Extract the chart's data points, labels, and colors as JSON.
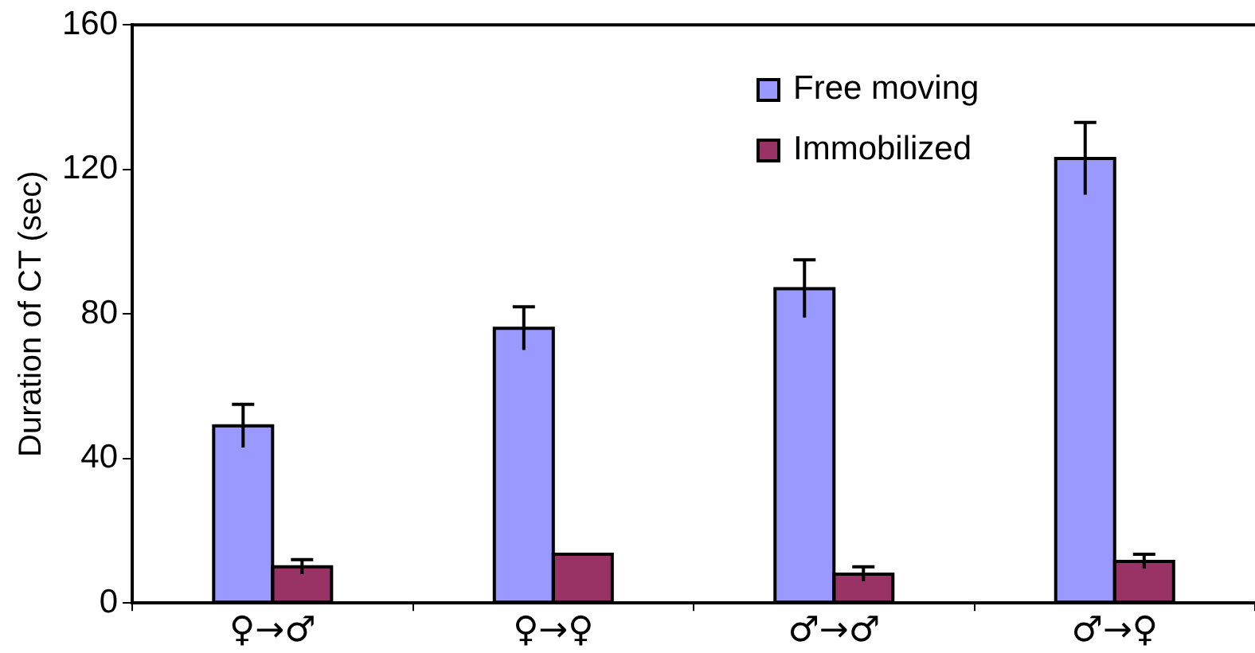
{
  "chart_data": {
    "type": "bar",
    "ylabel": "Duration of CT (sec)",
    "categories": [
      "♀→♂",
      "♀→♀",
      "♂→♂",
      "♂→♀"
    ],
    "series": [
      {
        "name": "Free moving",
        "color": "#9999ff",
        "values": [
          49,
          76,
          87,
          123
        ],
        "errors": [
          6,
          6,
          8,
          10
        ]
      },
      {
        "name": "Immobilized",
        "color": "#993366",
        "values": [
          10,
          13.5,
          8,
          11.5
        ],
        "errors": [
          2,
          null,
          2,
          2
        ]
      }
    ],
    "ylim": [
      0,
      160
    ],
    "yticks": [
      0,
      40,
      80,
      120,
      160
    ],
    "grid": false,
    "legend": "top"
  }
}
